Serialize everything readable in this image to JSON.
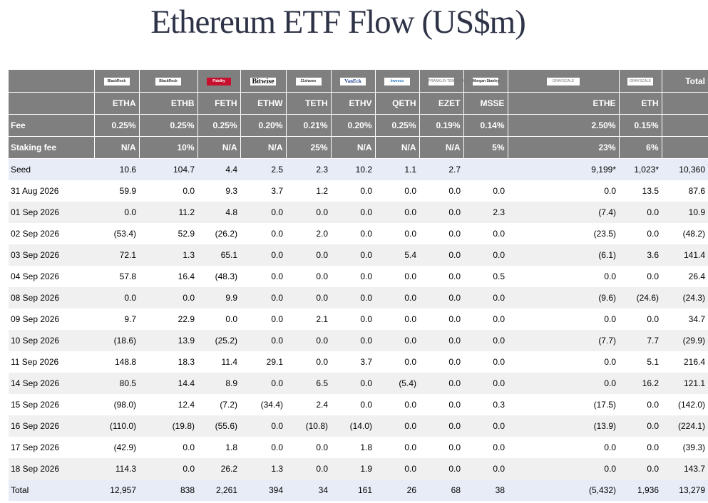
{
  "title": "Ethereum ETF Flow (US$m)",
  "issuers": [
    {
      "logo": "BlackRock",
      "ticker": "ETHA",
      "fee": "0.25%",
      "staking": "N/A"
    },
    {
      "logo": "BlackRock",
      "ticker": "ETHB",
      "fee": "0.25%",
      "staking": "10%"
    },
    {
      "logo": "Fidelity",
      "ticker": "FETH",
      "fee": "0.25%",
      "staking": "N/A"
    },
    {
      "logo": "Bitwise",
      "ticker": "ETHW",
      "fee": "0.20%",
      "staking": "N/A"
    },
    {
      "logo": "21shares",
      "ticker": "TETH",
      "fee": "0.21%",
      "staking": "25%"
    },
    {
      "logo": "VanEck",
      "ticker": "ETHV",
      "fee": "0.20%",
      "staking": "N/A"
    },
    {
      "logo": "Invesco",
      "ticker": "QETH",
      "fee": "0.25%",
      "staking": "N/A"
    },
    {
      "logo": "FRANKLIN TEMPLETON",
      "ticker": "EZET",
      "fee": "0.19%",
      "staking": "N/A"
    },
    {
      "logo": "Morgan Stanley",
      "ticker": "MSSE",
      "fee": "0.14%",
      "staking": "5%"
    },
    {
      "logo": "GRAYSCALE",
      "ticker": "ETHE",
      "fee": "2.50%",
      "staking": "23%"
    },
    {
      "logo": "GRAYSCALE",
      "ticker": "ETH",
      "fee": "0.15%",
      "staking": "6%"
    }
  ],
  "header": {
    "total_label": "Total",
    "fee_label": "Fee",
    "staking_label": "Staking fee"
  },
  "rows": [
    {
      "label": "Seed",
      "cells": [
        "10.6",
        "104.7",
        "4.4",
        "2.5",
        "2.3",
        "10.2",
        "1.1",
        "2.7",
        "",
        "9,199*",
        "1,023*",
        "10,360"
      ]
    },
    {
      "label": "31 Aug 2026",
      "cells": [
        "59.9",
        "0.0",
        "9.3",
        "3.7",
        "1.2",
        "0.0",
        "0.0",
        "0.0",
        "0.0",
        "0.0",
        "13.5",
        "87.6"
      ]
    },
    {
      "label": "01 Sep 2026",
      "cells": [
        "0.0",
        "11.2",
        "4.8",
        "0.0",
        "0.0",
        "0.0",
        "0.0",
        "0.0",
        "2.3",
        "(7.4)",
        "0.0",
        "10.9"
      ]
    },
    {
      "label": "02 Sep 2026",
      "cells": [
        "(53.4)",
        "52.9",
        "(26.2)",
        "0.0",
        "2.0",
        "0.0",
        "0.0",
        "0.0",
        "0.0",
        "(23.5)",
        "0.0",
        "(48.2)"
      ]
    },
    {
      "label": "03 Sep 2026",
      "cells": [
        "72.1",
        "1.3",
        "65.1",
        "0.0",
        "0.0",
        "0.0",
        "5.4",
        "0.0",
        "0.0",
        "(6.1)",
        "3.6",
        "141.4"
      ]
    },
    {
      "label": "04 Sep 2026",
      "cells": [
        "57.8",
        "16.4",
        "(48.3)",
        "0.0",
        "0.0",
        "0.0",
        "0.0",
        "0.0",
        "0.5",
        "0.0",
        "0.0",
        "26.4"
      ]
    },
    {
      "label": "08 Sep 2026",
      "cells": [
        "0.0",
        "0.0",
        "9.9",
        "0.0",
        "0.0",
        "0.0",
        "0.0",
        "0.0",
        "0.0",
        "(9.6)",
        "(24.6)",
        "(24.3)"
      ]
    },
    {
      "label": "09 Sep 2026",
      "cells": [
        "9.7",
        "22.9",
        "0.0",
        "0.0",
        "2.1",
        "0.0",
        "0.0",
        "0.0",
        "0.0",
        "0.0",
        "0.0",
        "34.7"
      ]
    },
    {
      "label": "10 Sep 2026",
      "cells": [
        "(18.6)",
        "13.9",
        "(25.2)",
        "0.0",
        "0.0",
        "0.0",
        "0.0",
        "0.0",
        "0.0",
        "(7.7)",
        "7.7",
        "(29.9)"
      ]
    },
    {
      "label": "11 Sep 2026",
      "cells": [
        "148.8",
        "18.3",
        "11.4",
        "29.1",
        "0.0",
        "3.7",
        "0.0",
        "0.0",
        "0.0",
        "0.0",
        "5.1",
        "216.4"
      ]
    },
    {
      "label": "14 Sep 2026",
      "cells": [
        "80.5",
        "14.4",
        "8.9",
        "0.0",
        "6.5",
        "0.0",
        "(5.4)",
        "0.0",
        "0.0",
        "0.0",
        "16.2",
        "121.1"
      ]
    },
    {
      "label": "15 Sep 2026",
      "cells": [
        "(98.0)",
        "12.4",
        "(7.2)",
        "(34.4)",
        "2.4",
        "0.0",
        "0.0",
        "0.0",
        "0.3",
        "(17.5)",
        "0.0",
        "(142.0)"
      ]
    },
    {
      "label": "16 Sep 2026",
      "cells": [
        "(110.0)",
        "(19.8)",
        "(55.6)",
        "0.0",
        "(10.8)",
        "(14.0)",
        "0.0",
        "0.0",
        "0.0",
        "(13.9)",
        "0.0",
        "(224.1)"
      ]
    },
    {
      "label": "17 Sep 2026",
      "cells": [
        "(42.9)",
        "0.0",
        "1.8",
        "0.0",
        "0.0",
        "1.8",
        "0.0",
        "0.0",
        "0.0",
        "0.0",
        "0.0",
        "(39.3)"
      ]
    },
    {
      "label": "18 Sep 2026",
      "cells": [
        "114.3",
        "0.0",
        "26.2",
        "1.3",
        "0.0",
        "1.9",
        "0.0",
        "0.0",
        "0.0",
        "0.0",
        "0.0",
        "143.7"
      ]
    },
    {
      "label": "Total",
      "cells": [
        "12,957",
        "838",
        "2,261",
        "394",
        "34",
        "161",
        "26",
        "68",
        "38",
        "(5,432)",
        "1,936",
        "13,279"
      ]
    }
  ]
}
